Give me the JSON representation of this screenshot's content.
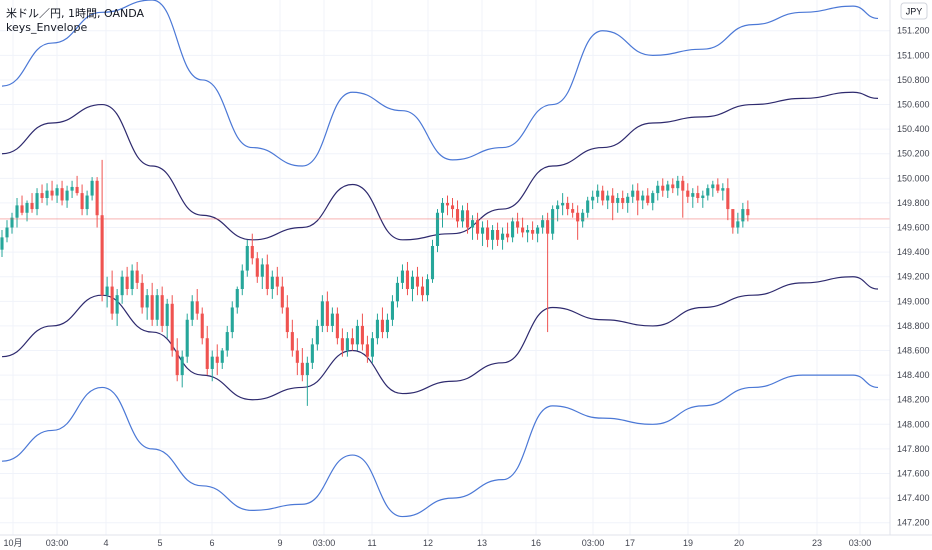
{
  "header": {
    "symbol_line": "米ドル／円, 1時間, OANDA",
    "indicator": "keys_Envelope"
  },
  "currency_badge": "JPY",
  "colors": {
    "up": "#26a69a",
    "down": "#ef5350",
    "outer_band": "#4b78d6",
    "inner_band": "#2e2a6e",
    "grid": "#f0f3fa",
    "crosshair": "#ef5350"
  },
  "chart_data": {
    "type": "candlestick",
    "y_axis": {
      "ticks": [
        "151.200",
        "151.000",
        "150.800",
        "150.600",
        "150.400",
        "150.200",
        "150.000",
        "149.800",
        "149.600",
        "149.400",
        "149.200",
        "149.000",
        "148.800",
        "148.600",
        "148.400",
        "148.200",
        "148.000",
        "147.800",
        "147.600",
        "147.400",
        "147.200"
      ],
      "range": [
        147.1,
        151.45
      ]
    },
    "x_axis": {
      "labels": [
        "10月",
        "03:00",
        "4",
        "5",
        "6",
        "9",
        "03:00",
        "11",
        "12",
        "13",
        "16",
        "03:00",
        "17",
        "19",
        "20",
        "23",
        "03:00"
      ],
      "range_bars": [
        0,
        175
      ]
    },
    "horizontal_line": 149.67,
    "envelope": {
      "x": [
        0,
        10,
        20,
        30,
        40,
        50,
        60,
        70,
        80,
        90,
        100,
        110,
        120,
        130,
        140,
        150,
        160,
        170,
        175
      ],
      "outer_upper": [
        150.75,
        151.1,
        151.35,
        151.45,
        150.8,
        150.25,
        150.1,
        150.7,
        150.55,
        150.15,
        150.25,
        150.6,
        151.2,
        151.0,
        151.05,
        151.25,
        151.35,
        151.4,
        151.3
      ],
      "inner_upper": [
        150.2,
        150.45,
        150.6,
        150.1,
        149.7,
        149.5,
        149.6,
        149.95,
        149.5,
        149.55,
        149.75,
        150.1,
        150.25,
        150.45,
        150.5,
        150.6,
        150.65,
        150.7,
        150.65
      ],
      "inner_lower": [
        148.55,
        148.8,
        149.05,
        148.75,
        148.4,
        148.2,
        148.3,
        148.6,
        148.25,
        148.35,
        148.5,
        148.95,
        148.85,
        148.8,
        148.95,
        149.05,
        149.15,
        149.2,
        149.1
      ],
      "outer_lower": [
        147.7,
        147.95,
        148.3,
        147.8,
        147.5,
        147.3,
        147.35,
        147.75,
        147.25,
        147.4,
        147.55,
        148.15,
        148.05,
        148.0,
        148.15,
        148.3,
        148.4,
        148.4,
        148.3
      ]
    },
    "candles_ohlc": [
      [
        149.42,
        149.58,
        149.36,
        149.52
      ],
      [
        149.52,
        149.66,
        149.48,
        149.6
      ],
      [
        149.6,
        149.72,
        149.55,
        149.68
      ],
      [
        149.68,
        149.84,
        149.6,
        149.78
      ],
      [
        149.78,
        149.86,
        149.7,
        149.72
      ],
      [
        149.72,
        149.82,
        149.65,
        149.8
      ],
      [
        149.8,
        149.88,
        149.72,
        149.75
      ],
      [
        149.75,
        149.92,
        149.7,
        149.88
      ],
      [
        149.88,
        149.95,
        149.8,
        149.84
      ],
      [
        149.84,
        149.96,
        149.78,
        149.9
      ],
      [
        149.9,
        149.98,
        149.82,
        149.86
      ],
      [
        149.86,
        149.95,
        149.8,
        149.92
      ],
      [
        149.92,
        149.98,
        149.78,
        149.82
      ],
      [
        149.82,
        149.94,
        149.76,
        149.9
      ],
      [
        149.9,
        149.98,
        149.84,
        149.93
      ],
      [
        149.93,
        150.02,
        149.86,
        149.88
      ],
      [
        149.88,
        149.95,
        149.7,
        149.75
      ],
      [
        149.75,
        149.9,
        149.7,
        149.86
      ],
      [
        149.86,
        150.01,
        149.82,
        149.98
      ],
      [
        149.98,
        150.01,
        149.6,
        149.7
      ],
      [
        149.7,
        150.15,
        149.0,
        149.05
      ],
      [
        149.05,
        149.2,
        148.95,
        149.12
      ],
      [
        149.12,
        149.25,
        148.85,
        148.9
      ],
      [
        148.9,
        149.1,
        148.8,
        149.05
      ],
      [
        149.05,
        149.25,
        148.98,
        149.2
      ],
      [
        149.2,
        149.28,
        149.05,
        149.1
      ],
      [
        149.1,
        149.3,
        149.05,
        149.25
      ],
      [
        149.25,
        149.32,
        149.1,
        149.15
      ],
      [
        149.15,
        149.22,
        148.9,
        148.95
      ],
      [
        148.95,
        149.1,
        148.85,
        149.05
      ],
      [
        149.05,
        149.15,
        148.8,
        148.85
      ],
      [
        148.85,
        149.1,
        148.8,
        149.05
      ],
      [
        149.05,
        149.12,
        148.75,
        148.8
      ],
      [
        148.8,
        149.02,
        148.7,
        148.98
      ],
      [
        148.98,
        149.05,
        148.55,
        148.6
      ],
      [
        148.6,
        148.7,
        148.35,
        148.4
      ],
      [
        148.4,
        148.6,
        148.3,
        148.55
      ],
      [
        148.55,
        148.9,
        148.5,
        148.85
      ],
      [
        148.85,
        149.05,
        148.8,
        149.0
      ],
      [
        149.0,
        149.1,
        148.85,
        148.9
      ],
      [
        148.9,
        148.95,
        148.65,
        148.7
      ],
      [
        148.7,
        148.8,
        148.4,
        148.45
      ],
      [
        148.45,
        148.6,
        148.35,
        148.55
      ],
      [
        148.55,
        148.65,
        148.4,
        148.5
      ],
      [
        148.5,
        148.62,
        148.45,
        148.6
      ],
      [
        148.6,
        148.8,
        148.55,
        148.75
      ],
      [
        148.75,
        149.0,
        148.7,
        148.95
      ],
      [
        148.95,
        149.12,
        148.9,
        149.1
      ],
      [
        149.1,
        149.3,
        149.05,
        149.25
      ],
      [
        149.25,
        149.5,
        149.2,
        149.45
      ],
      [
        149.45,
        149.55,
        149.3,
        149.35
      ],
      [
        149.35,
        149.4,
        149.15,
        149.2
      ],
      [
        149.2,
        149.35,
        149.1,
        149.3
      ],
      [
        149.3,
        149.38,
        149.05,
        149.1
      ],
      [
        149.1,
        149.25,
        149.02,
        149.2
      ],
      [
        149.2,
        149.28,
        149.05,
        149.12
      ],
      [
        149.12,
        149.2,
        148.9,
        148.95
      ],
      [
        148.95,
        149.05,
        148.7,
        148.75
      ],
      [
        148.75,
        148.85,
        148.55,
        148.6
      ],
      [
        148.6,
        148.7,
        148.4,
        148.5
      ],
      [
        148.5,
        148.62,
        148.35,
        148.4
      ],
      [
        148.4,
        148.55,
        148.15,
        148.5
      ],
      [
        148.5,
        148.7,
        148.45,
        148.65
      ],
      [
        148.65,
        148.85,
        148.6,
        148.8
      ],
      [
        148.8,
        149.05,
        148.75,
        149.0
      ],
      [
        149.0,
        149.08,
        148.75,
        148.8
      ],
      [
        148.8,
        148.95,
        148.75,
        148.9
      ],
      [
        148.9,
        148.95,
        148.65,
        148.7
      ],
      [
        148.7,
        148.78,
        148.55,
        148.6
      ],
      [
        148.6,
        148.75,
        148.55,
        148.7
      ],
      [
        148.7,
        148.78,
        148.6,
        148.65
      ],
      [
        148.65,
        148.85,
        148.6,
        148.8
      ],
      [
        148.8,
        148.9,
        148.6,
        148.65
      ],
      [
        148.65,
        148.72,
        148.5,
        148.55
      ],
      [
        148.55,
        148.75,
        148.5,
        148.7
      ],
      [
        148.7,
        148.9,
        148.65,
        148.85
      ],
      [
        148.85,
        148.95,
        148.7,
        148.75
      ],
      [
        148.75,
        148.9,
        148.7,
        148.85
      ],
      [
        148.85,
        149.05,
        148.8,
        149.0
      ],
      [
        149.0,
        149.2,
        148.95,
        149.15
      ],
      [
        149.15,
        149.3,
        149.1,
        149.25
      ],
      [
        149.25,
        149.32,
        149.05,
        149.1
      ],
      [
        149.1,
        149.25,
        149.0,
        149.2
      ],
      [
        149.2,
        149.28,
        149.05,
        149.12
      ],
      [
        149.12,
        149.2,
        149.0,
        149.05
      ],
      [
        149.05,
        149.22,
        149.0,
        149.18
      ],
      [
        149.18,
        149.5,
        149.15,
        149.45
      ],
      [
        149.45,
        149.75,
        149.4,
        149.72
      ],
      [
        149.72,
        149.84,
        149.6,
        149.8
      ],
      [
        149.8,
        149.86,
        149.7,
        149.78
      ],
      [
        149.78,
        149.84,
        149.68,
        149.75
      ],
      [
        149.75,
        149.82,
        149.6,
        149.65
      ],
      [
        149.65,
        149.78,
        149.6,
        149.74
      ],
      [
        149.74,
        149.8,
        149.55,
        149.6
      ],
      [
        149.6,
        149.7,
        149.5,
        149.66
      ],
      [
        149.66,
        149.72,
        149.5,
        149.55
      ],
      [
        149.55,
        149.65,
        149.45,
        149.6
      ],
      [
        149.6,
        149.66,
        149.44,
        149.5
      ],
      [
        149.5,
        149.62,
        149.42,
        149.58
      ],
      [
        149.58,
        149.64,
        149.45,
        149.5
      ],
      [
        149.5,
        149.6,
        149.42,
        149.55
      ],
      [
        149.55,
        149.64,
        149.48,
        149.52
      ],
      [
        149.52,
        149.68,
        149.48,
        149.65
      ],
      [
        149.65,
        149.72,
        149.55,
        149.6
      ],
      [
        149.6,
        149.68,
        149.52,
        149.56
      ],
      [
        149.56,
        149.62,
        149.48,
        149.58
      ],
      [
        149.58,
        149.65,
        149.5,
        149.55
      ],
      [
        149.55,
        149.62,
        149.48,
        149.6
      ],
      [
        149.6,
        149.7,
        149.55,
        149.66
      ],
      [
        149.66,
        149.72,
        148.75,
        149.55
      ],
      [
        149.55,
        149.78,
        149.5,
        149.75
      ],
      [
        149.75,
        149.82,
        149.65,
        149.78
      ],
      [
        149.78,
        149.88,
        149.7,
        149.8
      ],
      [
        149.8,
        149.85,
        149.7,
        149.75
      ],
      [
        149.75,
        149.8,
        149.68,
        149.72
      ],
      [
        149.72,
        149.78,
        149.5,
        149.65
      ],
      [
        149.65,
        149.75,
        149.6,
        149.72
      ],
      [
        149.72,
        149.85,
        149.68,
        149.82
      ],
      [
        149.82,
        149.9,
        149.75,
        149.85
      ],
      [
        149.85,
        149.95,
        149.8,
        149.9
      ],
      [
        149.9,
        149.94,
        149.78,
        149.82
      ],
      [
        149.82,
        149.9,
        149.75,
        149.86
      ],
      [
        149.86,
        149.92,
        149.66,
        149.8
      ],
      [
        149.8,
        149.88,
        149.72,
        149.84
      ],
      [
        149.84,
        149.9,
        149.75,
        149.8
      ],
      [
        149.8,
        149.88,
        149.72,
        149.85
      ],
      [
        149.85,
        149.95,
        149.8,
        149.9
      ],
      [
        149.9,
        149.96,
        149.7,
        149.82
      ],
      [
        149.82,
        149.9,
        149.75,
        149.86
      ],
      [
        149.86,
        149.92,
        149.78,
        149.8
      ],
      [
        149.8,
        149.9,
        149.74,
        149.88
      ],
      [
        149.88,
        149.98,
        149.82,
        149.94
      ],
      [
        149.94,
        150.0,
        149.85,
        149.9
      ],
      [
        149.9,
        149.98,
        149.84,
        149.95
      ],
      [
        149.95,
        150.0,
        149.88,
        149.92
      ],
      [
        149.92,
        150.02,
        149.86,
        149.98
      ],
      [
        149.98,
        150.02,
        149.68,
        149.9
      ],
      [
        149.9,
        149.96,
        149.8,
        149.85
      ],
      [
        149.85,
        149.92,
        149.76,
        149.88
      ],
      [
        149.88,
        149.94,
        149.8,
        149.84
      ],
      [
        149.84,
        149.9,
        149.76,
        149.86
      ],
      [
        149.86,
        149.95,
        149.82,
        149.92
      ],
      [
        149.92,
        149.98,
        149.85,
        149.95
      ],
      [
        149.95,
        150.0,
        149.88,
        149.9
      ],
      [
        149.9,
        149.96,
        149.82,
        149.92
      ],
      [
        149.92,
        150.0,
        149.66,
        149.75
      ],
      [
        149.75,
        149.68,
        149.55,
        149.6
      ],
      [
        149.6,
        149.72,
        149.55,
        149.65
      ],
      [
        149.65,
        149.8,
        149.6,
        149.75
      ],
      [
        149.75,
        149.82,
        149.65,
        149.7
      ]
    ]
  }
}
